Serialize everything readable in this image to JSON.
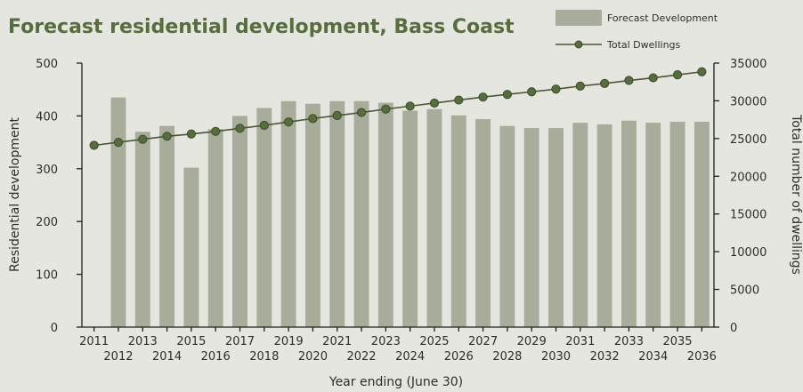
{
  "chart_data": {
    "type": "bar",
    "title": "Forecast residential development, Bass Coast",
    "xlabel": "Year ending (June 30)",
    "ylabel": "Residential development",
    "y2label": "Total number of dwellings",
    "categories": [
      "2011",
      "2012",
      "2013",
      "2014",
      "2015",
      "2016",
      "2017",
      "2018",
      "2019",
      "2020",
      "2021",
      "2022",
      "2023",
      "2024",
      "2025",
      "2026",
      "2027",
      "2028",
      "2029",
      "2030",
      "2031",
      "2032",
      "2033",
      "2034",
      "2035",
      "2036"
    ],
    "series": [
      {
        "name": "Forecast Development",
        "axis": "left",
        "kind": "bar",
        "values": [
          null,
          435,
          370,
          381,
          302,
          375,
          400,
          415,
          428,
          423,
          428,
          428,
          425,
          410,
          413,
          401,
          394,
          381,
          377,
          377,
          387,
          384,
          391,
          387,
          389,
          389
        ]
      },
      {
        "name": "Total Dwellings",
        "axis": "right",
        "kind": "line",
        "values": [
          24100,
          24500,
          24900,
          25300,
          25600,
          25950,
          26350,
          26750,
          27200,
          27650,
          28050,
          28450,
          28900,
          29300,
          29700,
          30100,
          30500,
          30850,
          31200,
          31550,
          31950,
          32300,
          32700,
          33050,
          33450,
          33850
        ]
      }
    ],
    "ylim": [
      0,
      500
    ],
    "y2lim": [
      0,
      35000
    ],
    "yticks": [
      "0",
      "100",
      "200",
      "300",
      "400",
      "500"
    ],
    "y2ticks": [
      "0",
      "5000",
      "10000",
      "15000",
      "20000",
      "25000",
      "30000",
      "35000"
    ],
    "grid": false,
    "legend": "top-right",
    "colors": {
      "bar": "#a7ad9a",
      "line": "#4b5535",
      "marker": "#566e3d",
      "title": "#566e3d",
      "background": "#e6e6e1"
    }
  }
}
